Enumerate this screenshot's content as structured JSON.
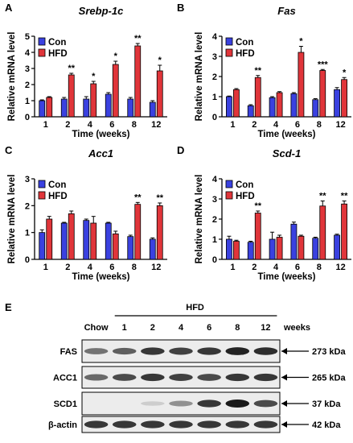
{
  "chart_data": [
    {
      "type": "bar",
      "panel": "A",
      "title": "Srebp-1c",
      "xlabel": "Time (weeks)",
      "ylabel": "Relative mRNA level",
      "ylim": [
        0,
        5
      ],
      "yticks": [
        0,
        1,
        2,
        3,
        4,
        5
      ],
      "categories": [
        "1",
        "2",
        "4",
        "6",
        "8",
        "12"
      ],
      "series": [
        {
          "name": "Con",
          "values": [
            1.0,
            1.1,
            1.1,
            1.4,
            1.1,
            0.9
          ],
          "errors": [
            0.05,
            0.1,
            0.15,
            0.1,
            0.1,
            0.1
          ]
        },
        {
          "name": "HFD",
          "values": [
            1.2,
            2.6,
            2.05,
            3.25,
            4.4,
            2.85
          ],
          "errors": [
            0.05,
            0.1,
            0.15,
            0.2,
            0.15,
            0.35
          ]
        }
      ],
      "significance": [
        "",
        "**",
        "*",
        "*",
        "**",
        "*"
      ],
      "legend": "top-left",
      "colors": {
        "Con": "#3a41e0",
        "HFD": "#e0353a"
      }
    },
    {
      "type": "bar",
      "panel": "B",
      "title": "Fas",
      "xlabel": "Time (weeks)",
      "ylabel": "Relative mRNA level",
      "ylim": [
        0,
        4
      ],
      "yticks": [
        0,
        1,
        2,
        3,
        4
      ],
      "categories": [
        "1",
        "2",
        "4",
        "6",
        "8",
        "12"
      ],
      "series": [
        {
          "name": "Con",
          "values": [
            1.0,
            0.55,
            0.95,
            1.15,
            0.85,
            1.35
          ],
          "errors": [
            0.03,
            0.05,
            0.05,
            0.05,
            0.05,
            0.1
          ]
        },
        {
          "name": "HFD",
          "values": [
            1.35,
            1.95,
            1.2,
            3.2,
            2.3,
            1.85
          ],
          "errors": [
            0.05,
            0.1,
            0.05,
            0.3,
            0.05,
            0.1
          ]
        }
      ],
      "significance": [
        "",
        "**",
        "",
        "*",
        "***",
        "*"
      ],
      "legend": "top-left",
      "colors": {
        "Con": "#3a41e0",
        "HFD": "#e0353a"
      }
    },
    {
      "type": "bar",
      "panel": "C",
      "title": "Acc1",
      "xlabel": "Time (weeks)",
      "ylabel": "Relative mRNA level",
      "ylim": [
        0,
        3
      ],
      "yticks": [
        0,
        1,
        2,
        3
      ],
      "categories": [
        "1",
        "2",
        "4",
        "6",
        "8",
        "12"
      ],
      "series": [
        {
          "name": "Con",
          "values": [
            1.0,
            1.35,
            1.45,
            1.35,
            0.85,
            0.75
          ],
          "errors": [
            0.1,
            0.03,
            0.05,
            0.03,
            0.05,
            0.05
          ]
        },
        {
          "name": "HFD",
          "values": [
            1.5,
            1.7,
            1.35,
            0.95,
            2.05,
            2.0
          ],
          "errors": [
            0.1,
            0.1,
            0.25,
            0.1,
            0.07,
            0.1
          ]
        }
      ],
      "significance": [
        "",
        "",
        "",
        "",
        "**",
        "**"
      ],
      "legend": "top-left",
      "colors": {
        "Con": "#3a41e0",
        "HFD": "#e0353a"
      }
    },
    {
      "type": "bar",
      "panel": "D",
      "title": "Scd-1",
      "xlabel": "Time (weeks)",
      "ylabel": "Relative mRNA level",
      "ylim": [
        0,
        4
      ],
      "yticks": [
        0,
        1,
        2,
        3,
        4
      ],
      "categories": [
        "1",
        "2",
        "4",
        "6",
        "8",
        "12"
      ],
      "series": [
        {
          "name": "Con",
          "values": [
            1.0,
            0.85,
            1.0,
            1.75,
            1.05,
            1.2
          ],
          "errors": [
            0.15,
            0.05,
            0.35,
            0.1,
            0.05,
            0.05
          ]
        },
        {
          "name": "HFD",
          "values": [
            0.9,
            2.3,
            1.1,
            1.15,
            2.65,
            2.75
          ],
          "errors": [
            0.05,
            0.1,
            0.1,
            0.05,
            0.25,
            0.15
          ]
        }
      ],
      "significance": [
        "",
        "**",
        "",
        "",
        "**",
        "**"
      ],
      "legend": "top-left",
      "colors": {
        "Con": "#3a41e0",
        "HFD": "#e0353a"
      }
    }
  ],
  "blot": {
    "panel": "E",
    "group_label": "HFD",
    "lanes": [
      "Chow",
      "1",
      "2",
      "4",
      "6",
      "8",
      "12"
    ],
    "unit_label": "weeks",
    "rows": [
      {
        "label": "FAS",
        "size": "273 kDa",
        "intensity": [
          0.55,
          0.65,
          0.85,
          0.8,
          0.85,
          0.95,
          0.9
        ]
      },
      {
        "label": "ACC1",
        "size": "265 kDa",
        "intensity": [
          0.6,
          0.75,
          0.85,
          0.8,
          0.75,
          0.85,
          0.85
        ]
      },
      {
        "label": "SCD1",
        "size": "37 kDa",
        "intensity": [
          0.0,
          0.0,
          0.1,
          0.4,
          0.85,
          1.0,
          0.75
        ]
      },
      {
        "label": "β-actin",
        "size": "42 kDa",
        "intensity": [
          0.85,
          0.85,
          0.85,
          0.85,
          0.85,
          0.85,
          0.85
        ]
      }
    ]
  }
}
